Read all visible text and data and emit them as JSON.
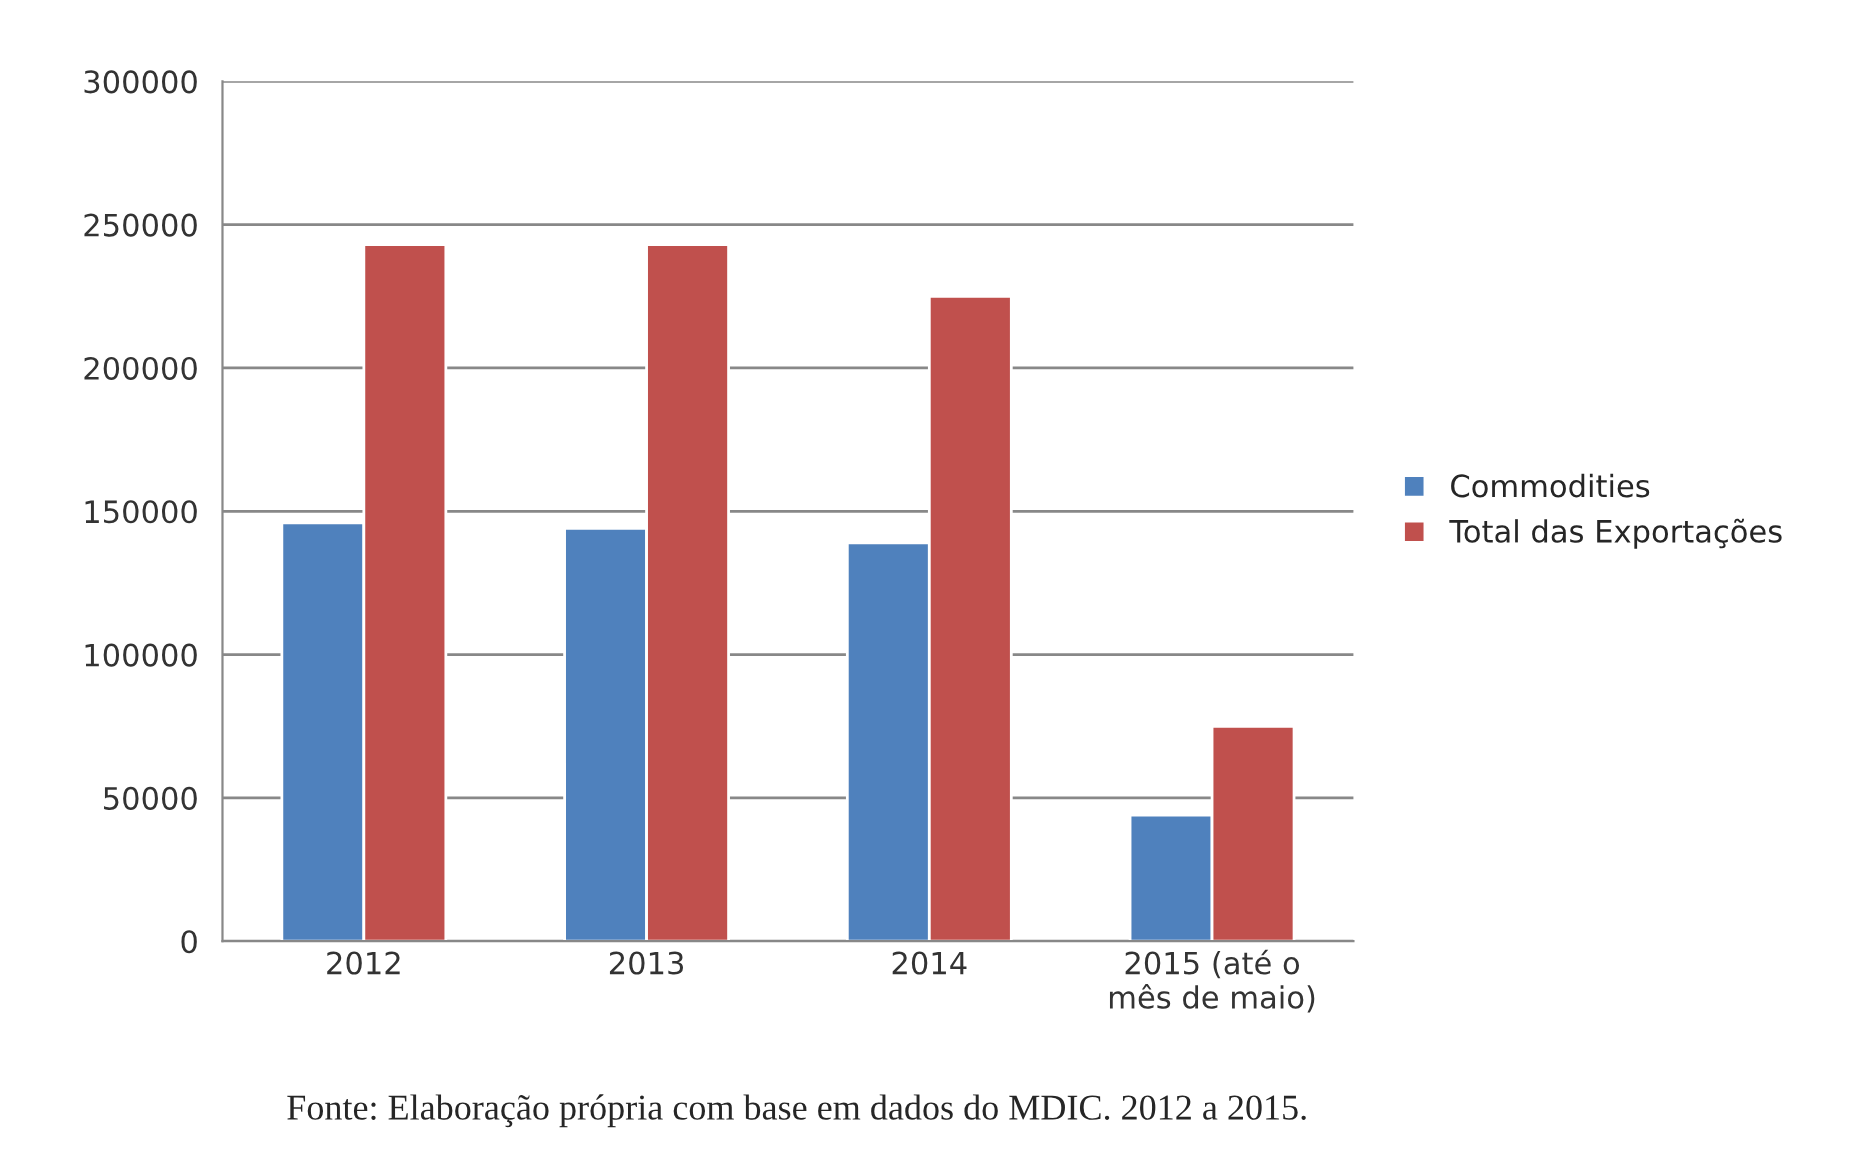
{
  "chart_data": {
    "type": "bar",
    "categories": [
      "2012",
      "2013",
      "2014",
      "2015 (até o\nmês de maio)"
    ],
    "series": [
      {
        "name": "Commodities",
        "color": "#4f81bd",
        "values": [
          146000,
          144000,
          139000,
          44000
        ]
      },
      {
        "name": "Total das Exportações",
        "color": "#c0504d",
        "values": [
          243000,
          243000,
          225000,
          75000
        ]
      }
    ],
    "ylim": [
      0,
      300000
    ],
    "yticks": [
      0,
      50000,
      100000,
      150000,
      200000,
      250000,
      300000
    ],
    "grid": "y",
    "legend": "right",
    "annotations": [
      "Fonte: Elaboração própria com base em dados do MDIC. 2012 a 2015."
    ]
  }
}
